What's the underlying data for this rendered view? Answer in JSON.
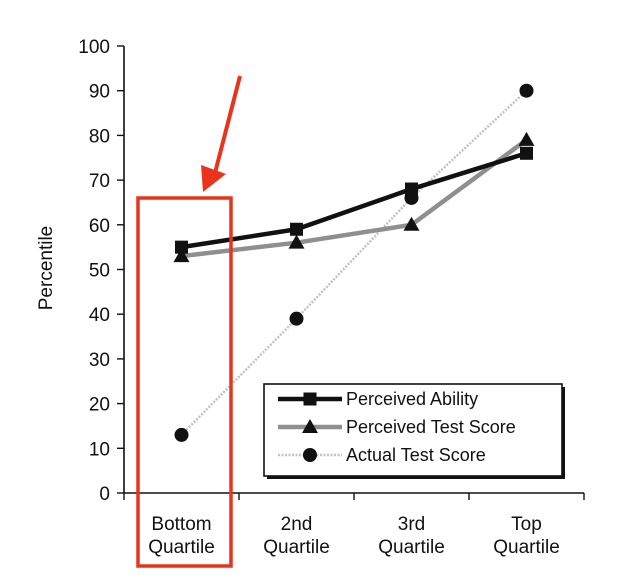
{
  "chart_data": {
    "type": "line",
    "title": "",
    "xlabel": "",
    "ylabel": "Percentile",
    "ylim": [
      0,
      100
    ],
    "yticks": [
      0,
      10,
      20,
      30,
      40,
      50,
      60,
      70,
      80,
      90,
      100
    ],
    "categories": [
      [
        "Bottom",
        "Quartile"
      ],
      [
        "2nd",
        "Quartile"
      ],
      [
        "3rd",
        "Quartile"
      ],
      [
        "Top",
        "Quartile"
      ]
    ],
    "grid": false,
    "legend_position": "bottom-right",
    "series": [
      {
        "name": "Perceived Ability",
        "values": [
          55,
          59,
          68,
          76
        ],
        "marker": "square",
        "color": "#111111"
      },
      {
        "name": "Perceived Test Score",
        "values": [
          53,
          56,
          60,
          79
        ],
        "marker": "triangle",
        "color": "#8c8c8c"
      },
      {
        "name": "Actual Test Score",
        "values": [
          13,
          39,
          66,
          90
        ],
        "marker": "circle",
        "color": "#c4c4c4"
      }
    ],
    "annotations": {
      "highlight_category": 0,
      "highlight_color": "#e8341c",
      "arrow_color": "#e8341c"
    }
  }
}
